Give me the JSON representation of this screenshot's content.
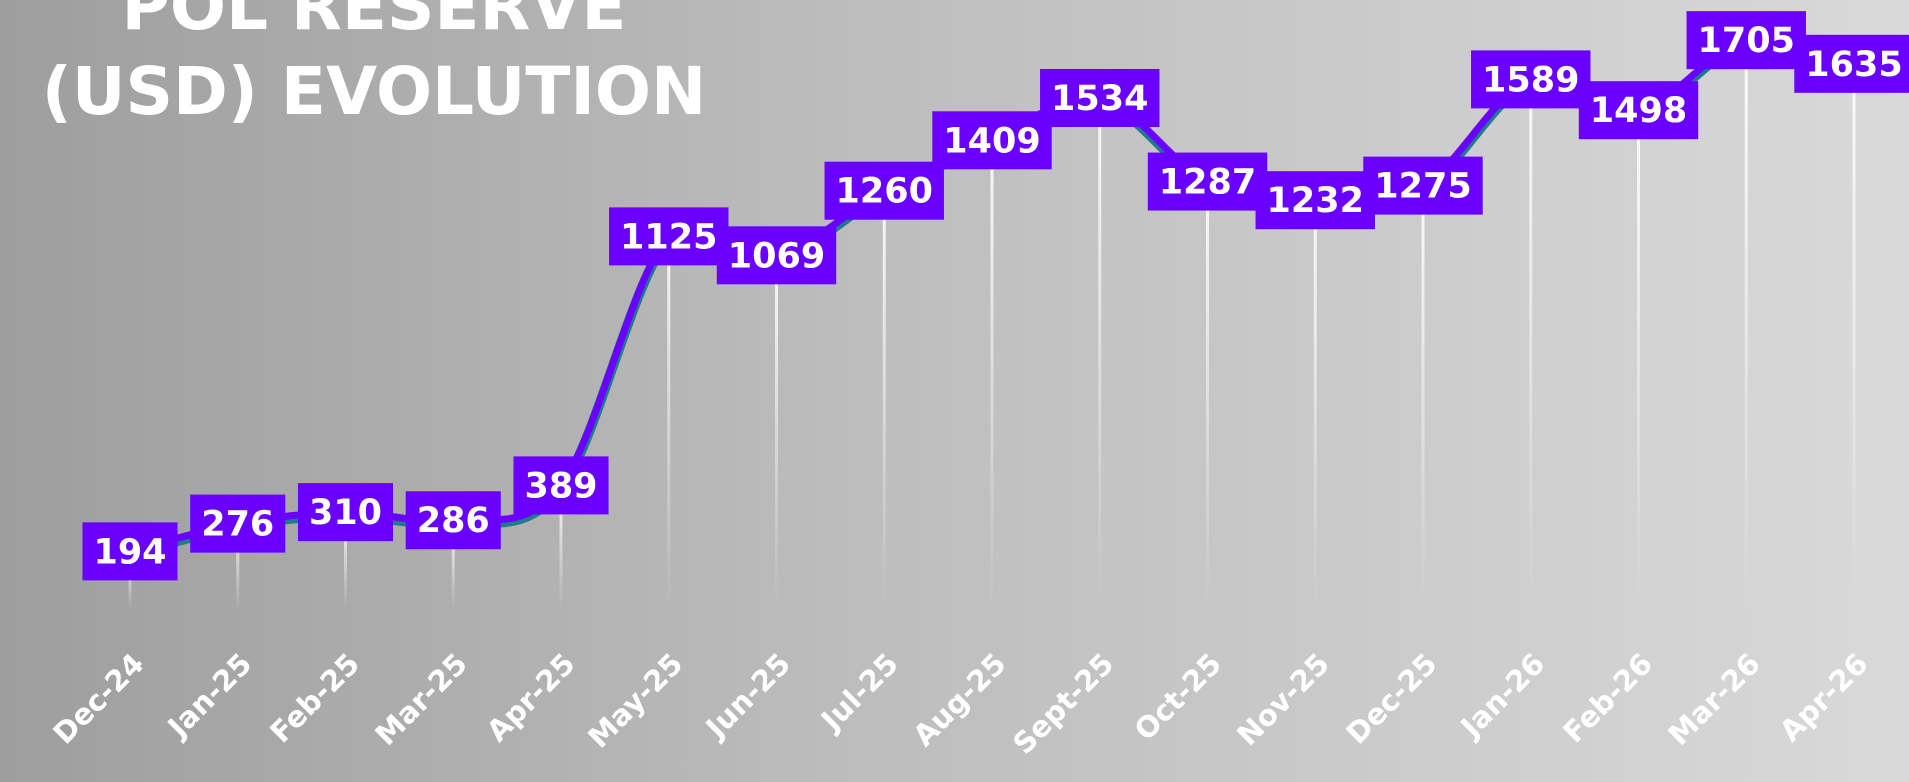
{
  "chart_data": {
    "type": "line",
    "title": "POL RESERVE (USD) EVOLUTION",
    "categories": [
      "Dec-24",
      "Jan-25",
      "Feb-25",
      "Mar-25",
      "Apr-25",
      "May-25",
      "Jun-25",
      "Jul-25",
      "Aug-25",
      "Sept-25",
      "Oct-25",
      "Nov-25",
      "Dec-25",
      "Jan-26",
      "Feb-26",
      "Mar-26",
      "Apr-26"
    ],
    "series": [
      {
        "name": "POL Reserve (USD)",
        "color": "#6a00ff",
        "values": [
          194,
          276,
          310,
          286,
          389,
          1125,
          1069,
          1260,
          1409,
          1534,
          1287,
          1232,
          1275,
          1589,
          1498,
          1705,
          1635
        ]
      }
    ],
    "ylim": [
      0,
      1800
    ]
  }
}
